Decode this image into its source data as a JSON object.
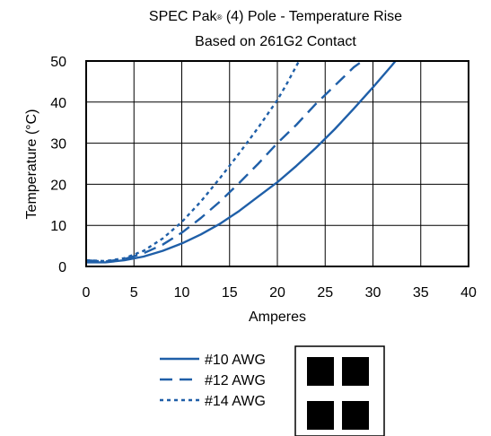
{
  "chart_data": {
    "type": "line",
    "title": "SPEC Pak",
    "title_mark": "®",
    "title_rest": " (4) Pole - Temperature Rise",
    "subtitle": "Based on 261G2 Contact",
    "xlabel": "Amperes",
    "ylabel": "Temperature (°C)",
    "xlim": [
      0,
      40
    ],
    "ylim": [
      0,
      50
    ],
    "x_ticks": [
      "0",
      "5",
      "10",
      "15",
      "20",
      "25",
      "30",
      "35",
      "40"
    ],
    "y_ticks": [
      "0",
      "10",
      "20",
      "30",
      "40",
      "50"
    ],
    "grid": true,
    "legend_position": "bottom-center",
    "line_color": "#1f5fa8",
    "series": [
      {
        "name": "#10 AWG",
        "style": "solid",
        "x": [
          0,
          2,
          4,
          6,
          8,
          10,
          12,
          14,
          16,
          18,
          20,
          22,
          24,
          26,
          28,
          30,
          32,
          32.7
        ],
        "y": [
          1.0,
          1.0,
          1.5,
          2.4,
          3.8,
          5.6,
          7.8,
          10.4,
          13.5,
          17.0,
          20.5,
          24.5,
          28.8,
          33.4,
          38.4,
          43.6,
          49.0,
          51.0
        ]
      },
      {
        "name": "#12 AWG",
        "style": "dashed",
        "x": [
          0,
          2,
          4,
          6,
          8,
          10,
          12,
          14,
          16,
          18,
          20,
          22,
          24,
          26,
          28,
          29.5
        ],
        "y": [
          1.5,
          1.2,
          1.8,
          3.2,
          5.3,
          8.2,
          11.8,
          15.8,
          20.3,
          25.0,
          30.0,
          34.5,
          39.5,
          44.0,
          48.5,
          51.0
        ]
      },
      {
        "name": "#14 AWG",
        "style": "dotted",
        "x": [
          0,
          2,
          4,
          6,
          8,
          10,
          12,
          14,
          16,
          18,
          20,
          21,
          22.5
        ],
        "y": [
          1.5,
          1.3,
          2.0,
          3.8,
          6.8,
          10.8,
          15.8,
          21.5,
          27.5,
          33.8,
          40.5,
          44.5,
          51.0
        ]
      }
    ]
  },
  "legend_icon": "four-pole-contact-icon"
}
